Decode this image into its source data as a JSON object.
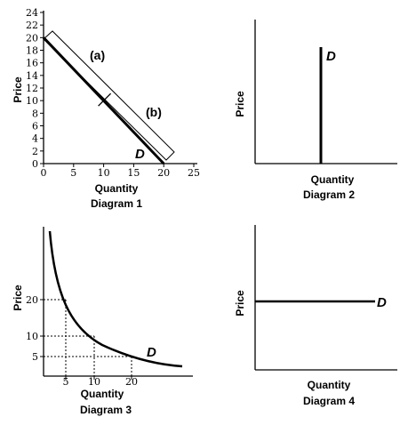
{
  "chart_data": [
    {
      "type": "line",
      "title": "Diagram 1",
      "xlabel": "Quantity",
      "ylabel": "Price",
      "xlim": [
        0,
        25
      ],
      "ylim": [
        0,
        24
      ],
      "x_ticks": [
        "0",
        "5",
        "10",
        "15",
        "20",
        "25"
      ],
      "y_ticks": [
        "0",
        "2",
        "4",
        "6",
        "8",
        "10",
        "12",
        "14",
        "16",
        "18",
        "20",
        "22",
        "24"
      ],
      "curve_label": "D",
      "segment_labels": [
        "(a)",
        "(b)"
      ],
      "series": [
        {
          "x": [
            0,
            10,
            20
          ],
          "y": [
            20,
            10,
            0
          ]
        }
      ],
      "midpoint": {
        "x": 10,
        "y": 10
      }
    },
    {
      "type": "line",
      "title": "Diagram 2",
      "xlabel": "Quantity",
      "ylabel": "Price",
      "curve_label": "D",
      "shape": "vertical"
    },
    {
      "type": "line",
      "title": "Diagram 3",
      "xlabel": "Quantity",
      "ylabel": "Price",
      "x_ticks": [
        "5",
        "10",
        "20"
      ],
      "y_ticks": [
        "5",
        "10",
        "20"
      ],
      "curve_label": "D",
      "shape": "rectangular-hyperbola",
      "points": [
        {
          "x": 5,
          "y": 20
        },
        {
          "x": 10,
          "y": 10
        },
        {
          "x": 20,
          "y": 5
        }
      ]
    },
    {
      "type": "line",
      "title": "Diagram 4",
      "xlabel": "Quantity",
      "ylabel": "Price",
      "curve_label": "D",
      "shape": "horizontal"
    }
  ]
}
